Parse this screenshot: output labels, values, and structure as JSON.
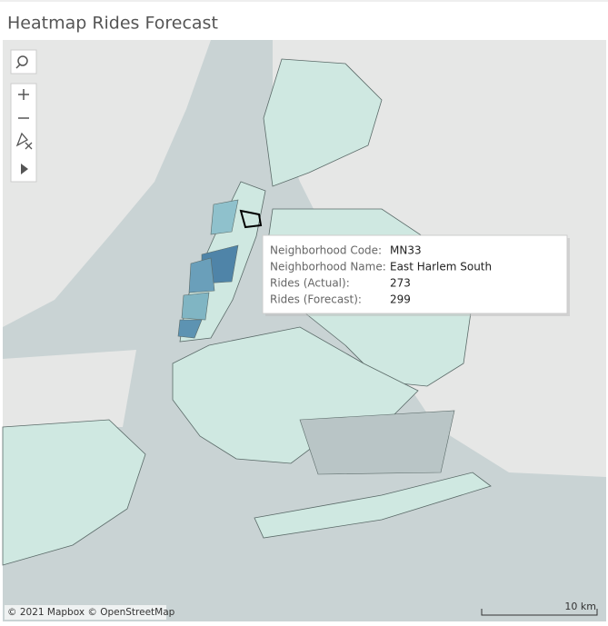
{
  "header": {
    "title": "Heatmap Rides Forecast"
  },
  "tooltip": {
    "rows": [
      {
        "label": "Neighborhood Code:",
        "value": "MN33"
      },
      {
        "label": "Neighborhood Name:",
        "value": "East Harlem South"
      },
      {
        "label": "Rides (Actual):",
        "value": 273
      },
      {
        "label": "Rides (Forecast):",
        "value": 299
      }
    ]
  },
  "map": {
    "attribution": "© 2021 Mapbox © OpenStreetMap",
    "scale_label": "10 km"
  }
}
